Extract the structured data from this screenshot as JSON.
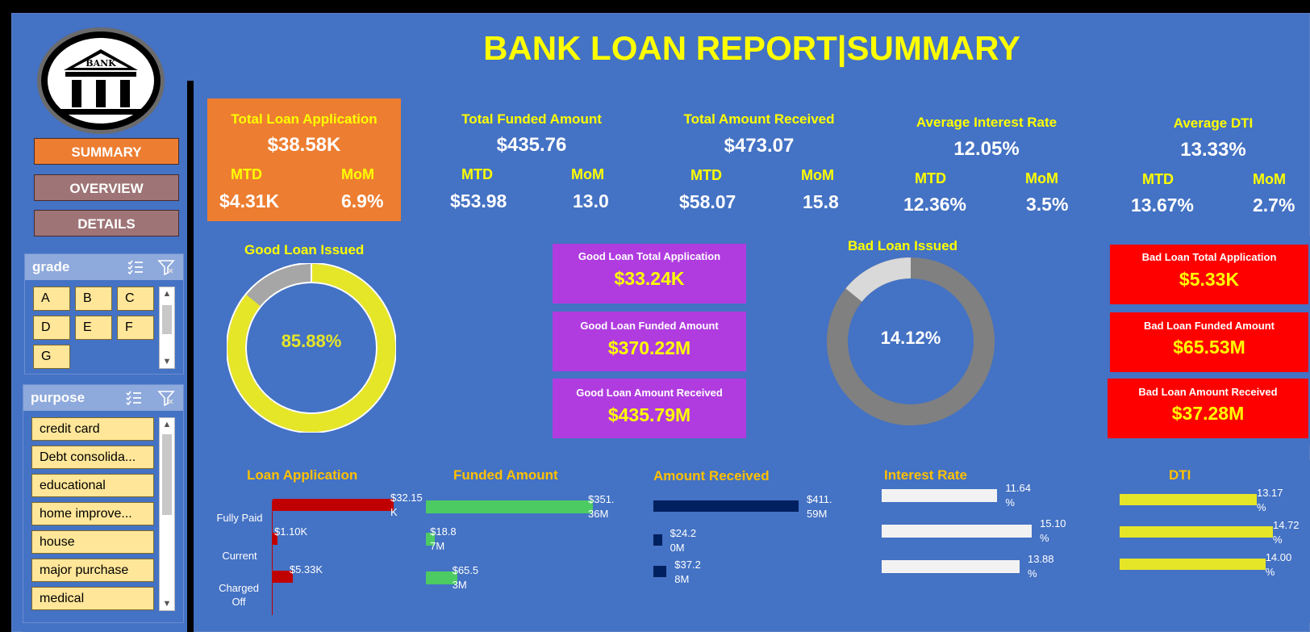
{
  "header": {
    "title": "BANK LOAN REPORT|SUMMARY"
  },
  "logo": {
    "text": "BANK"
  },
  "nav": {
    "summary": "SUMMARY",
    "overview": "OVERVIEW",
    "details": "DETAILS"
  },
  "slicers": {
    "grade": {
      "title": "grade",
      "items": [
        "A",
        "B",
        "C",
        "D",
        "E",
        "F",
        "G"
      ]
    },
    "purpose": {
      "title": "purpose",
      "items": [
        "credit card",
        "Debt consolida...",
        "educational",
        "home improve...",
        "house",
        "major purchase",
        "medical"
      ]
    }
  },
  "kpis": [
    {
      "label": "Total Loan Application",
      "value": "$38.58K",
      "mtd_label": "MTD",
      "mom_label": "MoM",
      "mtd": "$4.31K",
      "mom": "6.9%",
      "color": "#ED7D31"
    },
    {
      "label": "Total Funded Amount",
      "value": "$435.76",
      "mtd_label": "MTD",
      "mom_label": "MoM",
      "mtd": "$53.98",
      "mom": "13.0",
      "color": "#4472C4"
    },
    {
      "label": "Total Amount Received",
      "value": "$473.07",
      "mtd_label": "MTD",
      "mom_label": "MoM",
      "mtd": "$58.07",
      "mom": "15.8",
      "color": "#4472C4"
    },
    {
      "label": "Average Interest Rate",
      "value": "12.05%",
      "mtd_label": "MTD",
      "mom_label": "MoM",
      "mtd": "12.36%",
      "mom": "3.5%",
      "color": "#4472C4"
    },
    {
      "label": "Average DTI",
      "value": "13.33%",
      "mtd_label": "MTD",
      "mom_label": "MoM",
      "mtd": "13.67%",
      "mom": "2.7%",
      "color": "#4472C4"
    }
  ],
  "good_loan": {
    "title": "Good Loan Issued",
    "percent_label": "85.88%",
    "percent": 85.88,
    "cards": [
      {
        "label": "Good Loan Total Application",
        "value": "$33.24K"
      },
      {
        "label": "Good Loan Funded Amount",
        "value": "$370.22M"
      },
      {
        "label": "Good Loan Amount Received",
        "value": "$435.79M"
      }
    ]
  },
  "bad_loan": {
    "title": "Bad Loan Issued",
    "percent_label": "14.12%",
    "percent": 14.12,
    "cards": [
      {
        "label": "Bad Loan Total Application",
        "value": "$5.33K"
      },
      {
        "label": "Bad Loan Funded Amount",
        "value": "$65.53M"
      },
      {
        "label": "Bad Loan Amount Received",
        "value": "$37.28M"
      }
    ]
  },
  "breakdown": {
    "categories": [
      "Fully Paid",
      "Current",
      "Charged Off"
    ],
    "loan_application": {
      "title": "Loan Application",
      "labels": [
        "$32.15 K",
        "$1.10K",
        "$5.33K"
      ],
      "values": [
        32.15,
        1.1,
        5.33
      ]
    },
    "funded_amount": {
      "title": "Funded Amount",
      "labels": [
        "$351. 36M",
        "$18.8 7M",
        "$65.5 3M"
      ],
      "values": [
        351.36,
        18.87,
        65.53
      ]
    },
    "amount_received": {
      "title": "Amount Received",
      "labels": [
        "$411. 59M",
        "$24.2 0M",
        "$37.2 8M"
      ],
      "values": [
        411.59,
        24.2,
        37.28
      ]
    },
    "interest_rate": {
      "title": "Interest Rate",
      "labels": [
        "11.64 %",
        "15.10 %",
        "13.88 %"
      ],
      "values": [
        11.64,
        15.1,
        13.88
      ]
    },
    "dti": {
      "title": "DTI",
      "labels": [
        "13.17 %",
        "14.72 %",
        "14.00 %"
      ],
      "values": [
        13.17,
        14.72,
        14.0
      ]
    }
  },
  "chart_data": [
    {
      "type": "pie",
      "categories": [
        "Good Loan",
        "Bad Loan"
      ],
      "values": [
        85.88,
        14.12
      ],
      "title": "Good Loan Issued"
    },
    {
      "type": "pie",
      "categories": [
        "Bad Loan",
        "Good Loan"
      ],
      "values": [
        14.12,
        85.88
      ],
      "title": "Bad Loan Issued"
    },
    {
      "type": "bar",
      "title": "Loan Application",
      "categories": [
        "Fully Paid",
        "Current",
        "Charged Off"
      ],
      "values": [
        32.15,
        1.1,
        5.33
      ]
    },
    {
      "type": "bar",
      "title": "Funded Amount",
      "categories": [
        "Fully Paid",
        "Current",
        "Charged Off"
      ],
      "values": [
        351.36,
        18.87,
        65.53
      ]
    },
    {
      "type": "bar",
      "title": "Amount Received",
      "categories": [
        "Fully Paid",
        "Current",
        "Charged Off"
      ],
      "values": [
        411.59,
        24.2,
        37.28
      ]
    },
    {
      "type": "bar",
      "title": "Interest Rate",
      "categories": [
        "Fully Paid",
        "Current",
        "Charged Off"
      ],
      "values": [
        11.64,
        15.1,
        13.88
      ]
    },
    {
      "type": "bar",
      "title": "DTI",
      "categories": [
        "Fully Paid",
        "Current",
        "Charged Off"
      ],
      "values": [
        13.17,
        14.72,
        14.0
      ]
    }
  ]
}
